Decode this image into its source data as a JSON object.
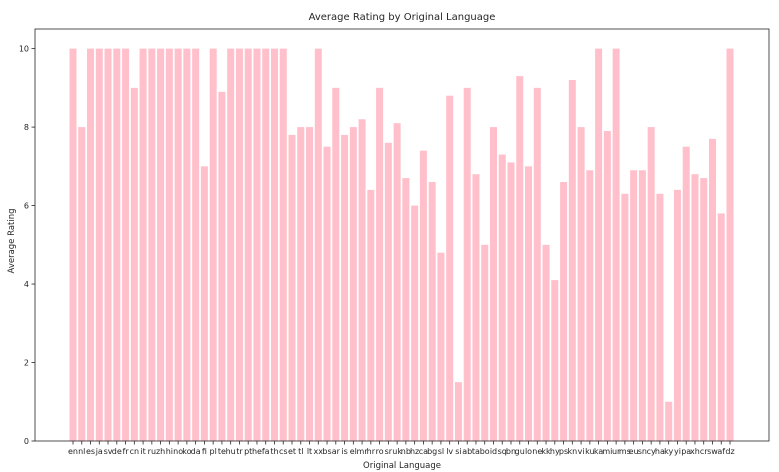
{
  "chart_data": {
    "type": "bar",
    "title": "Average Rating by Original Language",
    "xlabel": "Original Language",
    "ylabel": "Average Rating",
    "ylim": [
      0,
      10.5
    ],
    "yticks": [
      0,
      2,
      4,
      6,
      8,
      10
    ],
    "bar_color": "#ffc0cb",
    "grid": false,
    "categories": [
      "en",
      "nl",
      "es",
      "ja",
      "sv",
      "de",
      "fr",
      "cn",
      "it",
      "ru",
      "zh",
      "hi",
      "no",
      "ko",
      "da",
      "fi",
      "pl",
      "te",
      "hu",
      "tr",
      "pt",
      "he",
      "fa",
      "th",
      "cs",
      "et",
      "tl",
      "lt",
      "xx",
      "bs",
      "ar",
      "is",
      "el",
      "mr",
      "hr",
      "ro",
      "sr",
      "uk",
      "nb",
      "hz",
      "ca",
      "bg",
      "sl",
      "lv",
      "si",
      "ab",
      "ta",
      "bo",
      "id",
      "sq",
      "bn",
      "gu",
      "lo",
      "ne",
      "kk",
      "hy",
      "ps",
      "kn",
      "vi",
      "ku",
      "ka",
      "mi",
      "ur",
      "ms",
      "eu",
      "sn",
      "cy",
      "ha",
      "ky",
      "yi",
      "pa",
      "xh",
      "cr",
      "sw",
      "af",
      "dz"
    ],
    "values": [
      10,
      8,
      10,
      10,
      10,
      10,
      10,
      9,
      10,
      10,
      10,
      10,
      10,
      10,
      10,
      7,
      10,
      8.9,
      10,
      10,
      10,
      10,
      10,
      10,
      10,
      7.8,
      8,
      8,
      10,
      7.5,
      9,
      7.8,
      8,
      8.2,
      6.4,
      9,
      7.6,
      8.1,
      6.7,
      6,
      7.4,
      6.6,
      4.8,
      8.8,
      1.5,
      9,
      6.8,
      5,
      8,
      7.3,
      7.1,
      9.3,
      7,
      9,
      5,
      4.1,
      6.6,
      9.2,
      8,
      6.9,
      10,
      7.9,
      10,
      6.3,
      6.9,
      6.9,
      8,
      6.3,
      1,
      6.4,
      7.5,
      6.8,
      6.7,
      7.7,
      5.8,
      10
    ]
  }
}
